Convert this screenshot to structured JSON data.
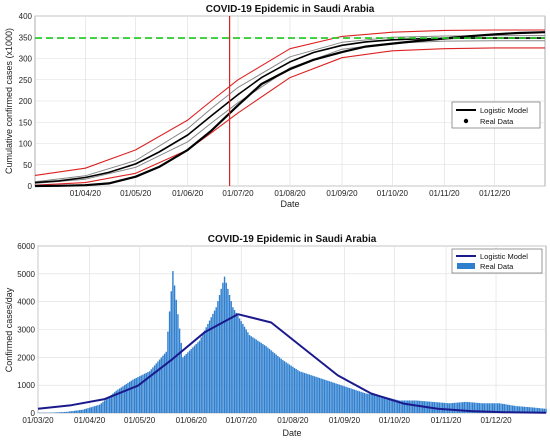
{
  "chart_data": [
    {
      "type": "line",
      "title": "COVID-19 Epidemic in Saudi Arabia",
      "xlabel": "Date",
      "ylabel": "Cumulative confirmed cases (x1000)",
      "ylim": [
        0,
        400
      ],
      "yticks": [
        0,
        50,
        100,
        150,
        200,
        250,
        300,
        350,
        400
      ],
      "xlim": [
        "2020-03-02",
        "2020-12-31"
      ],
      "xtick_labels": [
        "01/04/20",
        "01/05/20",
        "01/06/20",
        "01/07/20",
        "01/08/20",
        "01/09/20",
        "01/10/20",
        "01/11/20",
        "01/12/20"
      ],
      "xtick_dates": [
        "2020-04-01",
        "2020-05-01",
        "2020-06-01",
        "2020-07-01",
        "2020-08-01",
        "2020-09-01",
        "2020-10-01",
        "2020-11-01",
        "2020-12-01"
      ],
      "grid": true,
      "legend": {
        "placement": "right",
        "entries": [
          "Logistic Model",
          "Real Data"
        ]
      },
      "reference_lines": {
        "horizontal_value": 348,
        "horizontal_color": "#22cc22",
        "vertical_date": "2020-06-26",
        "vertical_color": "#dd2222"
      },
      "series": [
        {
          "name": "Logistic Model",
          "color": "#000000",
          "x": [
            "2020-03-02",
            "2020-03-16",
            "2020-04-01",
            "2020-04-15",
            "2020-05-01",
            "2020-05-15",
            "2020-06-01",
            "2020-06-15",
            "2020-07-01",
            "2020-07-15",
            "2020-08-01",
            "2020-08-15",
            "2020-09-01",
            "2020-09-15",
            "2020-10-01",
            "2020-10-15",
            "2020-11-01",
            "2020-11-15",
            "2020-12-01",
            "2020-12-15",
            "2020-12-31"
          ],
          "values": [
            8,
            12,
            20,
            32,
            52,
            80,
            120,
            165,
            215,
            255,
            292,
            314,
            331,
            339,
            344,
            346,
            347,
            348,
            348,
            348,
            348
          ]
        },
        {
          "name": "Real Data",
          "color": "#000000",
          "x": [
            "2020-03-02",
            "2020-03-16",
            "2020-04-01",
            "2020-04-15",
            "2020-05-01",
            "2020-05-15",
            "2020-06-01",
            "2020-06-15",
            "2020-07-01",
            "2020-07-15",
            "2020-08-01",
            "2020-08-15",
            "2020-09-01",
            "2020-09-15",
            "2020-10-01",
            "2020-10-15",
            "2020-11-01",
            "2020-11-15",
            "2020-12-01",
            "2020-12-15",
            "2020-12-31"
          ],
          "values": [
            0,
            0.5,
            2,
            6,
            22,
            45,
            85,
            130,
            190,
            240,
            275,
            297,
            315,
            328,
            335,
            341,
            347,
            352,
            357,
            360,
            362
          ]
        },
        {
          "name": "",
          "color": "#888888",
          "x": [
            "2020-03-02",
            "2020-04-01",
            "2020-05-01",
            "2020-06-01",
            "2020-06-15",
            "2020-07-01",
            "2020-08-01",
            "2020-09-01",
            "2020-10-01",
            "2020-11-01",
            "2020-12-01",
            "2020-12-31"
          ],
          "values": [
            10,
            24,
            60,
            135,
            182,
            232,
            304,
            338,
            350,
            353,
            354,
            354
          ]
        },
        {
          "name": "",
          "color": "#888888",
          "x": [
            "2020-03-02",
            "2020-04-01",
            "2020-05-01",
            "2020-06-01",
            "2020-06-15",
            "2020-07-01",
            "2020-08-01",
            "2020-09-01",
            "2020-10-01",
            "2020-11-01",
            "2020-12-01",
            "2020-12-31"
          ],
          "values": [
            6,
            16,
            44,
            104,
            148,
            196,
            278,
            322,
            336,
            341,
            342,
            342
          ]
        },
        {
          "name": "",
          "color": "#dd2222",
          "x": [
            "2020-03-02",
            "2020-04-01",
            "2020-05-01",
            "2020-06-01",
            "2020-06-15",
            "2020-07-01",
            "2020-08-01",
            "2020-09-01",
            "2020-10-01",
            "2020-11-01",
            "2020-12-01",
            "2020-12-31"
          ],
          "values": [
            25,
            42,
            85,
            155,
            200,
            250,
            323,
            352,
            362,
            366,
            367,
            367
          ]
        },
        {
          "name": "",
          "color": "#dd2222",
          "x": [
            "2020-03-02",
            "2020-04-01",
            "2020-05-01",
            "2020-06-01",
            "2020-06-15",
            "2020-07-01",
            "2020-08-01",
            "2020-09-01",
            "2020-10-01",
            "2020-11-01",
            "2020-12-01",
            "2020-12-31"
          ],
          "values": [
            2,
            8,
            30,
            85,
            125,
            172,
            255,
            302,
            318,
            323,
            325,
            325
          ]
        }
      ]
    },
    {
      "type": "bar",
      "title": "COVID-19 Epidemic in Saudi Arabia",
      "xlabel": "Date",
      "ylabel": "Confirmed cases/day",
      "ylim": [
        0,
        6000
      ],
      "yticks": [
        0,
        1000,
        2000,
        3000,
        4000,
        5000,
        6000
      ],
      "xlim": [
        "2020-03-01",
        "2020-12-31"
      ],
      "xtick_labels": [
        "01/03/20",
        "01/04/20",
        "01/05/20",
        "01/06/20",
        "01/07/20",
        "01/08/20",
        "01/09/20",
        "01/10/20",
        "01/11/20",
        "01/12/20"
      ],
      "xtick_dates": [
        "2020-03-01",
        "2020-04-01",
        "2020-05-01",
        "2020-06-01",
        "2020-07-01",
        "2020-08-01",
        "2020-09-01",
        "2020-10-01",
        "2020-11-01",
        "2020-12-01"
      ],
      "grid": true,
      "legend": {
        "placement": "top-right",
        "entries": [
          "Logistic Model",
          "Real Data"
        ]
      },
      "series": [
        {
          "name": "Real Data",
          "color": "#2f7fcf",
          "x": [
            "2020-03-08",
            "2020-03-18",
            "2020-03-28",
            "2020-04-07",
            "2020-04-17",
            "2020-04-27",
            "2020-05-07",
            "2020-05-17",
            "2020-05-21",
            "2020-05-27",
            "2020-06-06",
            "2020-06-16",
            "2020-06-21",
            "2020-06-26",
            "2020-07-06",
            "2020-07-16",
            "2020-07-26",
            "2020-08-05",
            "2020-08-15",
            "2020-08-25",
            "2020-09-04",
            "2020-09-14",
            "2020-09-24",
            "2020-10-04",
            "2020-10-14",
            "2020-10-24",
            "2020-11-03",
            "2020-11-13",
            "2020-11-23",
            "2020-12-03",
            "2020-12-13",
            "2020-12-23",
            "2020-12-31"
          ],
          "values": [
            10,
            40,
            120,
            300,
            800,
            1200,
            1500,
            2200,
            5100,
            2000,
            2600,
            3800,
            4900,
            3800,
            2800,
            2400,
            1900,
            1500,
            1300,
            1100,
            900,
            700,
            600,
            450,
            450,
            400,
            350,
            400,
            350,
            350,
            250,
            200,
            150
          ]
        },
        {
          "name": "Logistic Model",
          "color": "#1a1a8c",
          "x": [
            "2020-03-01",
            "2020-03-21",
            "2020-04-10",
            "2020-04-30",
            "2020-05-20",
            "2020-06-09",
            "2020-06-29",
            "2020-07-19",
            "2020-08-08",
            "2020-08-28",
            "2020-09-17",
            "2020-10-07",
            "2020-10-27",
            "2020-11-16",
            "2020-12-06",
            "2020-12-31"
          ],
          "values": [
            150,
            280,
            500,
            980,
            1900,
            2900,
            3550,
            3250,
            2300,
            1350,
            700,
            330,
            150,
            70,
            30,
            10
          ]
        }
      ]
    }
  ]
}
